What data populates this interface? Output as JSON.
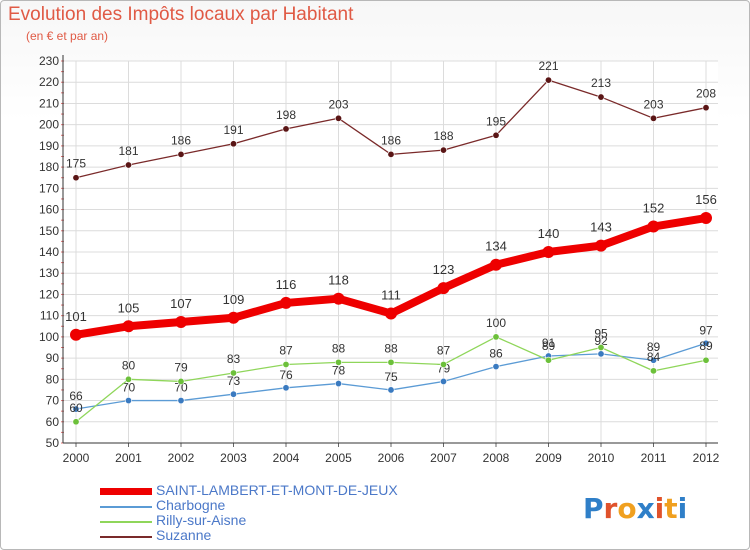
{
  "header": {
    "title": "Evolution des Impôts locaux par Habitant",
    "subtitle": "(en € et par an)"
  },
  "logo": {
    "text": "Proxiti",
    "colors": [
      "#2f7fc8",
      "#e0522b",
      "#f0a020",
      "#2f7fc8",
      "#e0522b",
      "#f0a020",
      "#2f7fc8"
    ]
  },
  "chart_data": {
    "type": "line",
    "x": [
      "2000",
      "2001",
      "2002",
      "2003",
      "2004",
      "2005",
      "2006",
      "2007",
      "2008",
      "2009",
      "2010",
      "2011",
      "2012"
    ],
    "ylim": [
      50,
      230
    ],
    "yticks": [
      50,
      60,
      70,
      80,
      90,
      100,
      110,
      120,
      130,
      140,
      150,
      160,
      170,
      180,
      190,
      200,
      210,
      220,
      230
    ],
    "grid": true,
    "legend_position": "bottom-left",
    "series": [
      {
        "name": "SAINT-LAMBERT-ET-MONT-DE-JEUX",
        "color": "#ee0000",
        "values": [
          101,
          105,
          107,
          109,
          116,
          118,
          111,
          123,
          134,
          140,
          143,
          152,
          156
        ]
      },
      {
        "name": "Charbogne",
        "color": "#5b9bd5",
        "values": [
          66,
          70,
          70,
          73,
          76,
          78,
          75,
          79,
          86,
          91,
          92,
          89,
          97
        ]
      },
      {
        "name": "Rilly-sur-Aisne",
        "color": "#8fd65a",
        "values": [
          60,
          80,
          79,
          83,
          87,
          88,
          88,
          87,
          100,
          89,
          95,
          84,
          89
        ]
      },
      {
        "name": "Suzanne",
        "color": "#7a2a2a",
        "values": [
          175,
          181,
          186,
          191,
          198,
          203,
          186,
          188,
          195,
          221,
          213,
          203,
          208
        ]
      }
    ]
  }
}
